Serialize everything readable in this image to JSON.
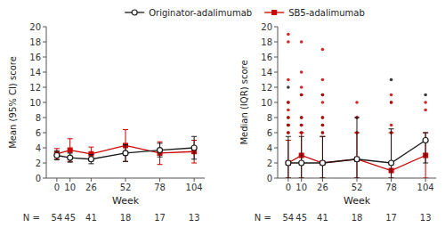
{
  "chart_data": [
    {
      "type": "line",
      "x": [
        0,
        10,
        26,
        52,
        78,
        104
      ],
      "xlim": [
        -8,
        112
      ],
      "xticks": [
        0,
        10,
        26,
        52,
        78,
        104
      ],
      "ylim": [
        0,
        20
      ],
      "yticks": [
        0,
        2,
        4,
        6,
        8,
        10,
        12,
        14,
        16,
        18,
        20
      ],
      "x_label": "Week",
      "y_label": "Mean (95% CI) score",
      "count_label": "N =",
      "counts": [
        54,
        45,
        41,
        18,
        17,
        13
      ],
      "grid": false,
      "legend": "top",
      "series": [
        {
          "name": "Originator-adalimumab",
          "color": "#1a1a1a",
          "marker": "circle",
          "values": [
            3.0,
            2.7,
            2.5,
            3.3,
            3.7,
            4.0
          ],
          "lower": [
            2.4,
            2.1,
            1.9,
            2.2,
            2.8,
            2.5
          ],
          "upper": [
            3.6,
            3.3,
            3.1,
            4.4,
            4.6,
            5.5
          ]
        },
        {
          "name": "SB5-adalimumab",
          "color": "#cc0000",
          "marker": "square",
          "values": [
            3.2,
            3.7,
            3.2,
            4.3,
            3.3,
            3.5
          ],
          "lower": [
            2.5,
            2.2,
            2.3,
            2.2,
            1.8,
            2.0
          ],
          "upper": [
            3.9,
            5.2,
            4.1,
            6.4,
            4.8,
            5.0
          ]
        }
      ]
    },
    {
      "type": "line",
      "x": [
        0,
        10,
        26,
        52,
        78,
        104
      ],
      "xlim": [
        -8,
        112
      ],
      "xticks": [
        0,
        10,
        26,
        52,
        78,
        104
      ],
      "ylim": [
        0,
        20
      ],
      "yticks": [
        0,
        2,
        4,
        6,
        8,
        10,
        12,
        14,
        16,
        18,
        20
      ],
      "x_label": "Week",
      "y_label": "Median (IQR) score",
      "count_label": "N =",
      "counts": [
        54,
        45,
        41,
        18,
        17,
        13
      ],
      "grid": false,
      "series": [
        {
          "color": "#1a1a1a",
          "marker": "circle",
          "values": [
            2.0,
            2.0,
            2.0,
            2.5,
            2.0,
            5.0
          ],
          "lower": [
            0.0,
            0.0,
            0.0,
            0.0,
            0.0,
            2.0
          ],
          "upper": [
            5.5,
            5.5,
            5.5,
            8.0,
            6.5,
            6.0
          ],
          "outliers": [
            [
              12,
              10,
              8,
              7,
              7,
              6
            ],
            [
              11,
              8,
              7,
              6
            ],
            [
              11,
              8,
              7,
              6
            ],
            [
              8,
              6
            ],
            [
              13,
              10,
              6
            ],
            [
              11
            ]
          ]
        },
        {
          "color": "#cc0000",
          "marker": "square",
          "values": [
            2.0,
            3.0,
            2.0,
            2.5,
            1.0,
            3.0
          ],
          "lower": [
            0.0,
            0.0,
            0.0,
            0.0,
            0.0,
            0.0
          ],
          "upper": [
            5.0,
            6.0,
            5.5,
            6.0,
            6.0,
            6.0
          ],
          "outliers": [
            [
              19,
              18,
              13,
              10,
              9,
              8,
              7,
              6
            ],
            [
              18,
              14,
              12,
              11,
              8,
              7,
              6
            ],
            [
              17,
              13,
              11,
              10,
              8,
              7,
              6
            ],
            [
              10,
              8,
              6
            ],
            [
              11,
              10,
              7,
              6
            ],
            [
              10,
              9
            ]
          ]
        }
      ]
    }
  ]
}
